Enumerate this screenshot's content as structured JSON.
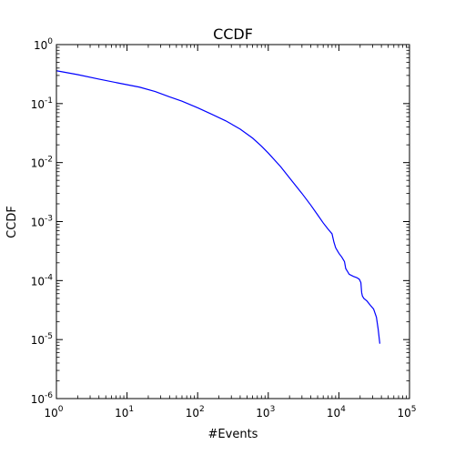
{
  "chart_data": {
    "type": "line",
    "title": "CCDF",
    "xlabel": "#Events",
    "ylabel": "CCDF",
    "xscale": "log",
    "yscale": "log",
    "xlim": [
      1,
      100000
    ],
    "ylim": [
      1e-06,
      1
    ],
    "grid": false,
    "x_ticks": [
      {
        "base": "10",
        "exp": "0",
        "value": 1
      },
      {
        "base": "10",
        "exp": "1",
        "value": 10
      },
      {
        "base": "10",
        "exp": "2",
        "value": 100
      },
      {
        "base": "10",
        "exp": "3",
        "value": 1000
      },
      {
        "base": "10",
        "exp": "4",
        "value": 10000
      },
      {
        "base": "10",
        "exp": "5",
        "value": 100000
      }
    ],
    "y_ticks": [
      {
        "base": "10",
        "exp": "0",
        "value": 1
      },
      {
        "base": "10",
        "exp": "-1",
        "value": 0.1
      },
      {
        "base": "10",
        "exp": "-2",
        "value": 0.01
      },
      {
        "base": "10",
        "exp": "-3",
        "value": 0.001
      },
      {
        "base": "10",
        "exp": "-4",
        "value": 0.0001
      },
      {
        "base": "10",
        "exp": "-5",
        "value": 1e-05
      },
      {
        "base": "10",
        "exp": "-6",
        "value": 1e-06
      }
    ],
    "color": "#0000ff",
    "series": [
      {
        "x": [
          1,
          2,
          4,
          8,
          15,
          25,
          40,
          60,
          100,
          150,
          250,
          400,
          600,
          800,
          1000,
          1500,
          2000,
          3000,
          4000,
          5000,
          6000,
          7000,
          8000,
          8500,
          9000,
          10000,
          11000,
          12000,
          12500,
          14000,
          16000,
          18000,
          19500,
          20500,
          21000,
          21500,
          22500,
          25000,
          28000,
          31000,
          34000,
          36000,
          38000
        ],
        "y": [
          0.36,
          0.31,
          0.26,
          0.22,
          0.19,
          0.16,
          0.13,
          0.11,
          0.085,
          0.068,
          0.051,
          0.037,
          0.026,
          0.019,
          0.0145,
          0.0085,
          0.0055,
          0.003,
          0.0019,
          0.0013,
          0.00095,
          0.00075,
          0.00062,
          0.00045,
          0.00036,
          0.00029,
          0.00025,
          0.00021,
          0.00016,
          0.000128,
          0.000118,
          0.000112,
          0.000105,
          9.2e-05,
          6.3e-05,
          5.5e-05,
          5e-05,
          4.5e-05,
          3.8e-05,
          3.3e-05,
          2.4e-05,
          1.5e-05,
          8.5e-06
        ]
      }
    ]
  }
}
